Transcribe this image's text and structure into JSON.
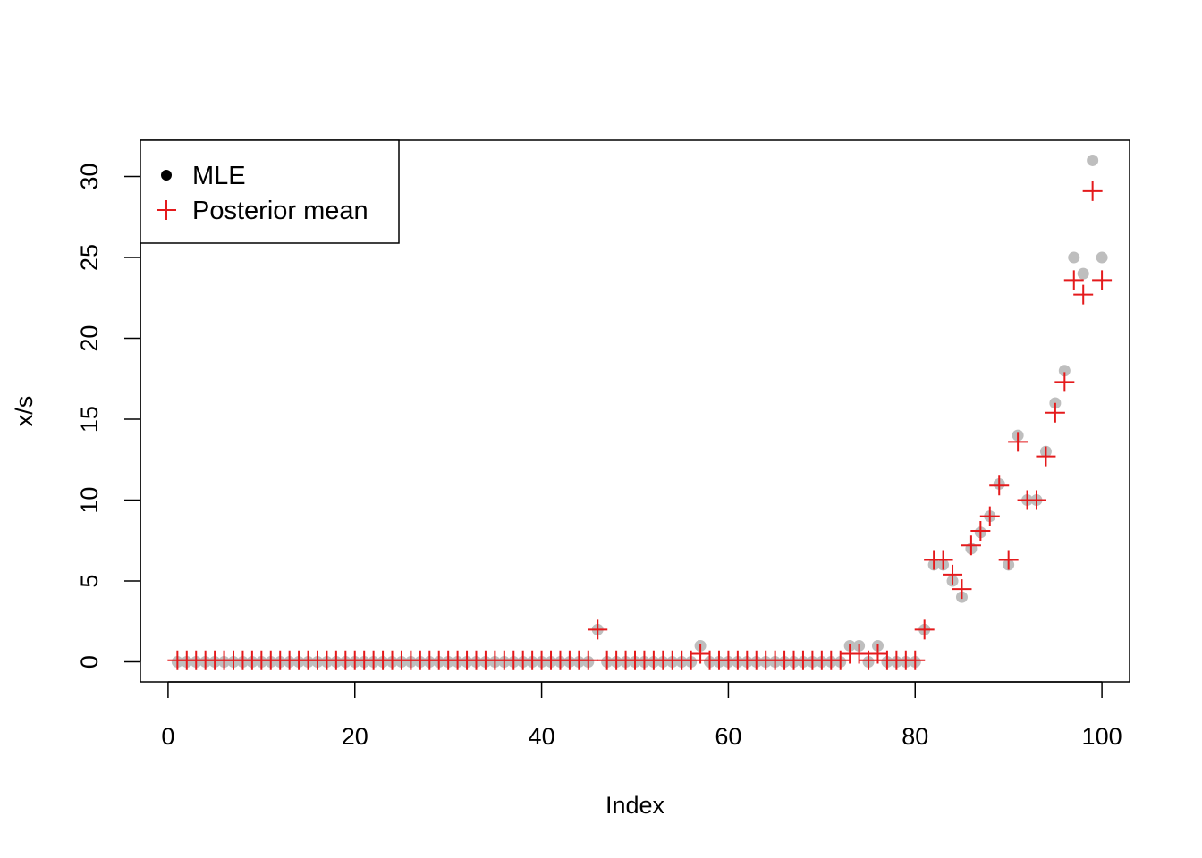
{
  "chart_data": {
    "type": "scatter",
    "title": "",
    "xlabel": "Index",
    "ylabel": "x/s",
    "xlim": [
      -2.96,
      102.96
    ],
    "ylim": [
      -1.24,
      32.24
    ],
    "xticks": [
      0,
      20,
      40,
      60,
      80,
      100
    ],
    "yticks": [
      0,
      5,
      10,
      15,
      20,
      25,
      30
    ],
    "legend_position": "top-left",
    "grid": false,
    "series": [
      {
        "name": "MLE",
        "marker": "filled-circle",
        "legend_color": "#000000",
        "point_color": "#bebebe",
        "x": [
          1,
          2,
          3,
          4,
          5,
          6,
          7,
          8,
          9,
          10,
          11,
          12,
          13,
          14,
          15,
          16,
          17,
          18,
          19,
          20,
          21,
          22,
          23,
          24,
          25,
          26,
          27,
          28,
          29,
          30,
          31,
          32,
          33,
          34,
          35,
          36,
          37,
          38,
          39,
          40,
          41,
          42,
          43,
          44,
          45,
          46,
          47,
          48,
          49,
          50,
          51,
          52,
          53,
          54,
          55,
          56,
          57,
          58,
          59,
          60,
          61,
          62,
          63,
          64,
          65,
          66,
          67,
          68,
          69,
          70,
          71,
          72,
          73,
          74,
          75,
          76,
          77,
          78,
          79,
          80,
          81,
          82,
          83,
          84,
          85,
          86,
          87,
          88,
          89,
          90,
          91,
          92,
          93,
          94,
          95,
          96,
          97,
          98,
          99,
          100
        ],
        "y": [
          0,
          0,
          0,
          0,
          0,
          0,
          0,
          0,
          0,
          0,
          0,
          0,
          0,
          0,
          0,
          0,
          0,
          0,
          0,
          0,
          0,
          0,
          0,
          0,
          0,
          0,
          0,
          0,
          0,
          0,
          0,
          0,
          0,
          0,
          0,
          0,
          0,
          0,
          0,
          0,
          0,
          0,
          0,
          0,
          0,
          2,
          0,
          0,
          0,
          0,
          0,
          0,
          0,
          0,
          0,
          0,
          1,
          0,
          0,
          0,
          0,
          0,
          0,
          0,
          0,
          0,
          0,
          0,
          0,
          0,
          0,
          0,
          1,
          1,
          0,
          1,
          0,
          0,
          0,
          0,
          2,
          6,
          6,
          5,
          4,
          7,
          8,
          9,
          11,
          6,
          14,
          10,
          10,
          13,
          16,
          18,
          25,
          24,
          31,
          25
        ]
      },
      {
        "name": "Posterior mean",
        "marker": "plus",
        "color": "#e41a1c",
        "x": [
          1,
          2,
          3,
          4,
          5,
          6,
          7,
          8,
          9,
          10,
          11,
          12,
          13,
          14,
          15,
          16,
          17,
          18,
          19,
          20,
          21,
          22,
          23,
          24,
          25,
          26,
          27,
          28,
          29,
          30,
          31,
          32,
          33,
          34,
          35,
          36,
          37,
          38,
          39,
          40,
          41,
          42,
          43,
          44,
          45,
          46,
          47,
          48,
          49,
          50,
          51,
          52,
          53,
          54,
          55,
          56,
          57,
          58,
          59,
          60,
          61,
          62,
          63,
          64,
          65,
          66,
          67,
          68,
          69,
          70,
          71,
          72,
          73,
          74,
          75,
          76,
          77,
          78,
          79,
          80,
          81,
          82,
          83,
          84,
          85,
          86,
          87,
          88,
          89,
          90,
          91,
          92,
          93,
          94,
          95,
          96,
          97,
          98,
          99,
          100
        ],
        "y": [
          0.1,
          0.1,
          0.1,
          0.1,
          0.1,
          0.1,
          0.1,
          0.1,
          0.1,
          0.1,
          0.1,
          0.1,
          0.1,
          0.1,
          0.1,
          0.1,
          0.1,
          0.1,
          0.1,
          0.1,
          0.1,
          0.1,
          0.1,
          0.1,
          0.1,
          0.1,
          0.1,
          0.1,
          0.1,
          0.1,
          0.1,
          0.1,
          0.1,
          0.1,
          0.1,
          0.1,
          0.1,
          0.1,
          0.1,
          0.1,
          0.1,
          0.1,
          0.1,
          0.1,
          0.1,
          2.0,
          0.1,
          0.1,
          0.1,
          0.1,
          0.1,
          0.1,
          0.1,
          0.1,
          0.1,
          0.1,
          0.5,
          0.1,
          0.1,
          0.1,
          0.1,
          0.1,
          0.1,
          0.1,
          0.1,
          0.1,
          0.1,
          0.1,
          0.1,
          0.1,
          0.1,
          0.1,
          0.5,
          0.5,
          0.1,
          0.5,
          0.1,
          0.1,
          0.1,
          0.1,
          2.0,
          6.3,
          6.3,
          5.4,
          4.5,
          7.2,
          8.1,
          9.0,
          10.9,
          6.3,
          13.6,
          10.0,
          10.0,
          12.7,
          15.4,
          17.3,
          23.6,
          22.7,
          29.1,
          23.6
        ]
      }
    ]
  }
}
